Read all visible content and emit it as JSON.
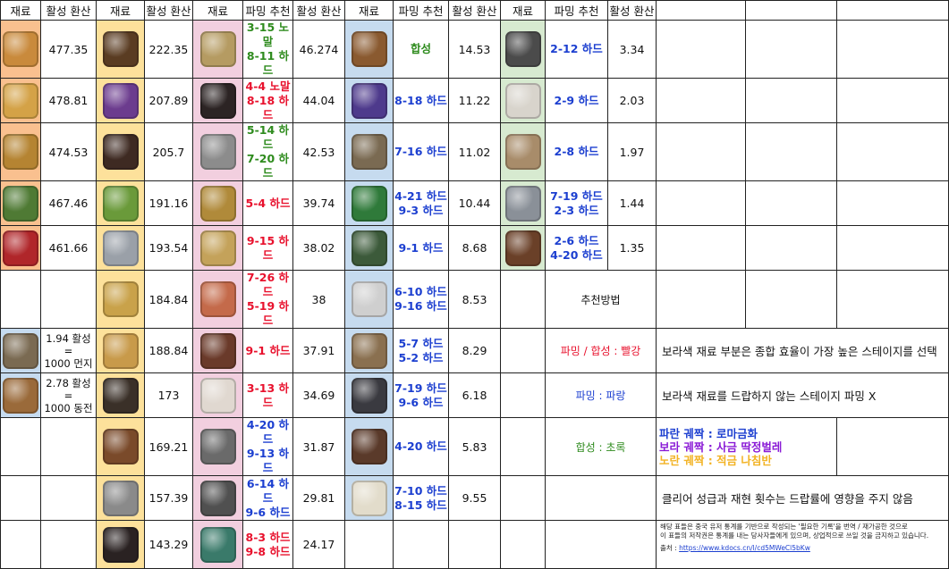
{
  "header": {
    "h1": "재료",
    "h2": "활성 환산",
    "h3": "재료",
    "h4": "활성 환산",
    "h5": "재료",
    "h6": "파밍 추천",
    "h7": "활성 환산",
    "h8": "재료",
    "h9": "파밍 추천",
    "h10": "활성 환산",
    "h11": "재료",
    "h12": "파밍 추천",
    "h13": "활성 환산"
  },
  "col1": {
    "r0": "477.35",
    "r1": "478.81",
    "r2": "474.53",
    "r3": "467.46",
    "r4": "461.66",
    "r6a": "1.94 활성",
    "r6b": "=",
    "r6c": "1000 먼지",
    "r7a": "2.78 활성",
    "r7b": "=",
    "r7c": "1000 동전"
  },
  "col2": [
    "222.35",
    "207.89",
    "205.7",
    "191.16",
    "193.54",
    "184.84",
    "188.84",
    "173",
    "169.21",
    "157.39",
    "143.29"
  ],
  "col3": {
    "rec": [
      [
        "3-15 노말",
        "8-11 하드"
      ],
      [
        "4-4 노말",
        "8-18 하드"
      ],
      [
        "5-14 하드",
        "7-20 하드"
      ],
      [
        "5-4 하드"
      ],
      [
        "9-15 하드"
      ],
      [
        "7-26 하드",
        "5-19 하드"
      ],
      [
        "9-1 하드"
      ],
      [
        "3-13 하드"
      ],
      [
        "4-20 하드",
        "9-13 하드"
      ],
      [
        "6-14 하드",
        "9-6 하드"
      ],
      [
        "8-3 하드",
        "9-8 하드"
      ]
    ],
    "val": [
      "46.274",
      "44.04",
      "42.53",
      "39.74",
      "38.02",
      "38",
      "37.91",
      "34.69",
      "31.87",
      "29.81",
      "24.17"
    ]
  },
  "col4": {
    "rec": [
      [
        "합성"
      ],
      [
        "8-18 하드"
      ],
      [
        "7-16 하드"
      ],
      [
        "4-21 하드",
        "9-3 하드"
      ],
      [
        "9-1 하드"
      ],
      [
        "6-10 하드",
        "9-16 하드"
      ],
      [
        "5-7 하드",
        "5-2 하드"
      ],
      [
        "7-19 하드",
        "9-6 하드"
      ],
      [
        "4-20 하드"
      ],
      [
        "7-10 하드",
        "8-15 하드"
      ]
    ],
    "val": [
      "14.53",
      "11.22",
      "11.02",
      "10.44",
      "8.68",
      "8.53",
      "8.29",
      "6.18",
      "5.83",
      "9.55"
    ]
  },
  "col5": {
    "rec": [
      [
        "2-12 하드"
      ],
      [
        "2-9 하드"
      ],
      [
        "2-8 하드"
      ],
      [
        "7-19 하드",
        "2-3 하드"
      ],
      [
        "2-6 하드",
        "4-20 하드"
      ]
    ],
    "val": [
      "3.34",
      "2.03",
      "1.97",
      "1.44",
      "1.35"
    ]
  },
  "side": {
    "method_title": "추천방법",
    "farm_synth": "파밍 / 합성 : 빨강",
    "farm": "파밍 : 파랑",
    "synth": "합성 : 초록",
    "note1": "보라색 재료 부분은 종합 효율이 가장 높은 스테이지를 선택",
    "note2": "보라색 재료를 드랍하지 않는 스테이지 파밍 X",
    "legend_blue": "파란 궤짝 : 로마금화",
    "legend_purple": "보라 궤짝 : 사금 딱정벌레",
    "legend_yellow": "노란 궤짝 : 적금 나침반",
    "note3": "클리어 성급과 재현 횟수는 드랍률에 영향을 주지 않음",
    "fine1": "해당 표들은 중국 유저 통계를 기반으로 작성되는 '필요한 기록'을 번역 / 재가공한 것으로",
    "fine2": "이 표들의 저작권은 통계를 내는 당사자들에게 있으며, 상업적으로 쓰일 것을 금지하고 있습니다.",
    "source_label": "출처 : ",
    "source_link": "https://www.kdocs.cn/l/cd5MWeCl5bKw"
  },
  "colors": {
    "orange": "#f9c08f",
    "yellow": "#fde19b",
    "pink": "#f2cfdf",
    "blue": "#c6dbef",
    "green": "#d7ead0",
    "rec_red": "#e8112d",
    "rec_green": "#2e8b1d",
    "rec_blue": "#1c3fd0"
  },
  "icons": [
    "golden-relic-icon",
    "golden-caduceus-icon",
    "golden-serpent-ring-icon",
    "green-wreath-icon",
    "red-gem-brooch-icon",
    "bronze-ornament-icon",
    "purple-potion-icon",
    "dark-book-icon",
    "green-tome-icon",
    "silver-feather-icon",
    "golden-insect-icon",
    "amber-orb-icon",
    "glass-dome-icon",
    "leather-folio-icon",
    "silver-quills-icon",
    "black-journal-icon",
    "bronze-pendant-icon",
    "dark-card-icon",
    "silver-hook-icon",
    "small-trumpet-icon",
    "winged-charm-icon",
    "clown-figure-icon",
    "leather-panel-icon",
    "pearl-pouch-icon",
    "tree-pin-icon",
    "notebook-stack-icon",
    "parrot-figure-icon",
    "copper-locket-icon",
    "purple-tuning-fork-icon",
    "bronze-wheel-icon",
    "green-flask-icon",
    "green-stone-cluster-icon",
    "silver-bowl-icon",
    "bundle-scrolls-icon",
    "book-stack-icon",
    "tarot-card-icon",
    "white-feather-icon",
    "bow-and-bell-icon",
    "cotton-ball-icon",
    "parchment-scroll-icon",
    "silver-bird-icon",
    "brown-brush-icon",
    "triangle-badge-icon",
    "bronze-coin-icon"
  ]
}
